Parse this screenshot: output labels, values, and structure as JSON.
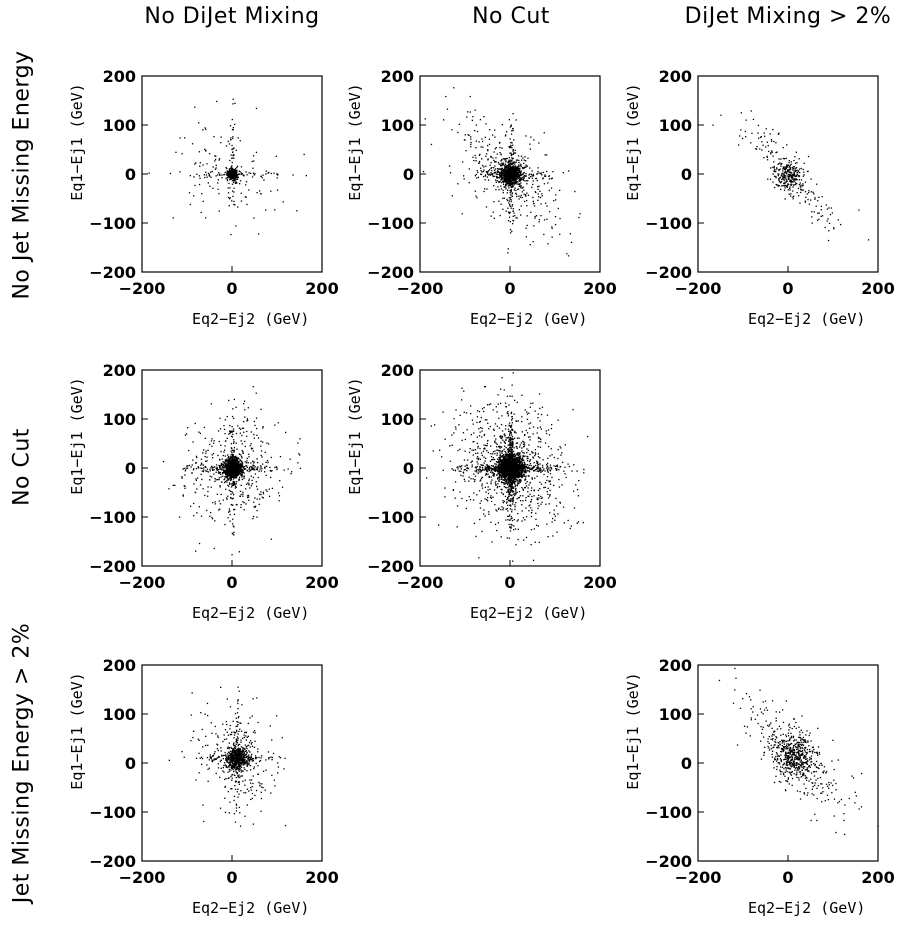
{
  "column_titles": [
    "No DiJet Mixing",
    "No Cut",
    "DiJet Mixing > 2%"
  ],
  "row_titles": [
    "No Jet Missing Energy",
    "No Cut",
    "Jet Missing Energy > 2%"
  ],
  "chart_data": [
    {
      "type": "scatter",
      "row": 0,
      "col": 0,
      "xlabel": "Eq2−Ej2 (GeV)",
      "ylabel": "Eq1−Ej1 (GeV)",
      "xlim": [
        -200,
        200
      ],
      "ylim": [
        -200,
        200
      ],
      "xticks": [
        "−200",
        "0",
        "200"
      ],
      "yticks": [
        "200",
        "100",
        "0",
        "−100",
        "−200"
      ],
      "grid": false,
      "points_n": 500,
      "core_sd": [
        6,
        6
      ],
      "halo_sd": [
        55,
        55
      ],
      "halo_corr": -0.2,
      "cross": true
    },
    {
      "type": "scatter",
      "row": 0,
      "col": 1,
      "xlabel": "Eq2−Ej2 (GeV)",
      "ylabel": "Eq1−Ej1 (GeV)",
      "xlim": [
        -200,
        200
      ],
      "ylim": [
        -200,
        200
      ],
      "xticks": [
        "−200",
        "0",
        "200"
      ],
      "yticks": [
        "200",
        "100",
        "0",
        "−100",
        "−200"
      ],
      "grid": false,
      "points_n": 1300,
      "core_sd": [
        12,
        12
      ],
      "halo_sd": [
        60,
        60
      ],
      "halo_corr": -0.6,
      "cross": true
    },
    {
      "type": "scatter",
      "row": 0,
      "col": 2,
      "xlabel": "Eq2−Ej2 (GeV)",
      "ylabel": "Eq1−Ej1 (GeV)",
      "xlim": [
        -200,
        200
      ],
      "ylim": [
        -200,
        200
      ],
      "xticks": [
        "−200",
        "0",
        "200"
      ],
      "yticks": [
        "200",
        "100",
        "0",
        "−100",
        "−200"
      ],
      "grid": false,
      "points_n": 400,
      "core_sd": [
        14,
        14
      ],
      "halo_sd": [
        55,
        55
      ],
      "halo_corr": -0.85,
      "cross": false
    },
    {
      "type": "scatter",
      "row": 1,
      "col": 0,
      "xlabel": "Eq2−Ej2 (GeV)",
      "ylabel": "Eq1−Ej1 (GeV)",
      "xlim": [
        -200,
        200
      ],
      "ylim": [
        -200,
        200
      ],
      "xticks": [
        "−200",
        "0",
        "200"
      ],
      "yticks": [
        "200",
        "100",
        "0",
        "−100",
        "−200"
      ],
      "grid": false,
      "points_n": 1500,
      "core_sd": [
        10,
        10
      ],
      "halo_sd": [
        55,
        60
      ],
      "halo_corr": 0,
      "cross": true
    },
    {
      "type": "scatter",
      "row": 1,
      "col": 1,
      "xlabel": "Eq2−Ej2 (GeV)",
      "ylabel": "Eq1−Ej1 (GeV)",
      "xlim": [
        -200,
        200
      ],
      "ylim": [
        -200,
        200
      ],
      "xticks": [
        "−200",
        "0",
        "200"
      ],
      "yticks": [
        "200",
        "100",
        "0",
        "−100",
        "−200"
      ],
      "grid": false,
      "points_n": 3000,
      "core_sd": [
        14,
        14
      ],
      "halo_sd": [
        65,
        65
      ],
      "halo_corr": -0.2,
      "cross": true
    },
    {
      "type": "scatter",
      "row": 2,
      "col": 0,
      "xlabel": "Eq2−Ej2 (GeV)",
      "ylabel": "Eq1−Ej1 (GeV)",
      "xlim": [
        -200,
        200
      ],
      "ylim": [
        -200,
        200
      ],
      "xticks": [
        "−200",
        "0",
        "200"
      ],
      "yticks": [
        "200",
        "100",
        "0",
        "−100",
        "−200"
      ],
      "grid": false,
      "points_n": 900,
      "core_sd": [
        12,
        12
      ],
      "halo_sd": [
        45,
        55
      ],
      "halo_corr": -0.2,
      "cross": true,
      "offset": [
        10,
        10
      ]
    },
    {
      "type": "scatter",
      "row": 2,
      "col": 2,
      "xlabel": "Eq2−Ej2 (GeV)",
      "ylabel": "Eq1−Ej1 (GeV)",
      "xlim": [
        -200,
        200
      ],
      "ylim": [
        -200,
        200
      ],
      "xticks": [
        "−200",
        "0",
        "200"
      ],
      "yticks": [
        "200",
        "100",
        "0",
        "−100",
        "−200"
      ],
      "grid": false,
      "points_n": 700,
      "core_sd": [
        22,
        22
      ],
      "halo_sd": [
        60,
        60
      ],
      "halo_corr": -0.8,
      "cross": false,
      "offset": [
        15,
        15
      ]
    }
  ]
}
